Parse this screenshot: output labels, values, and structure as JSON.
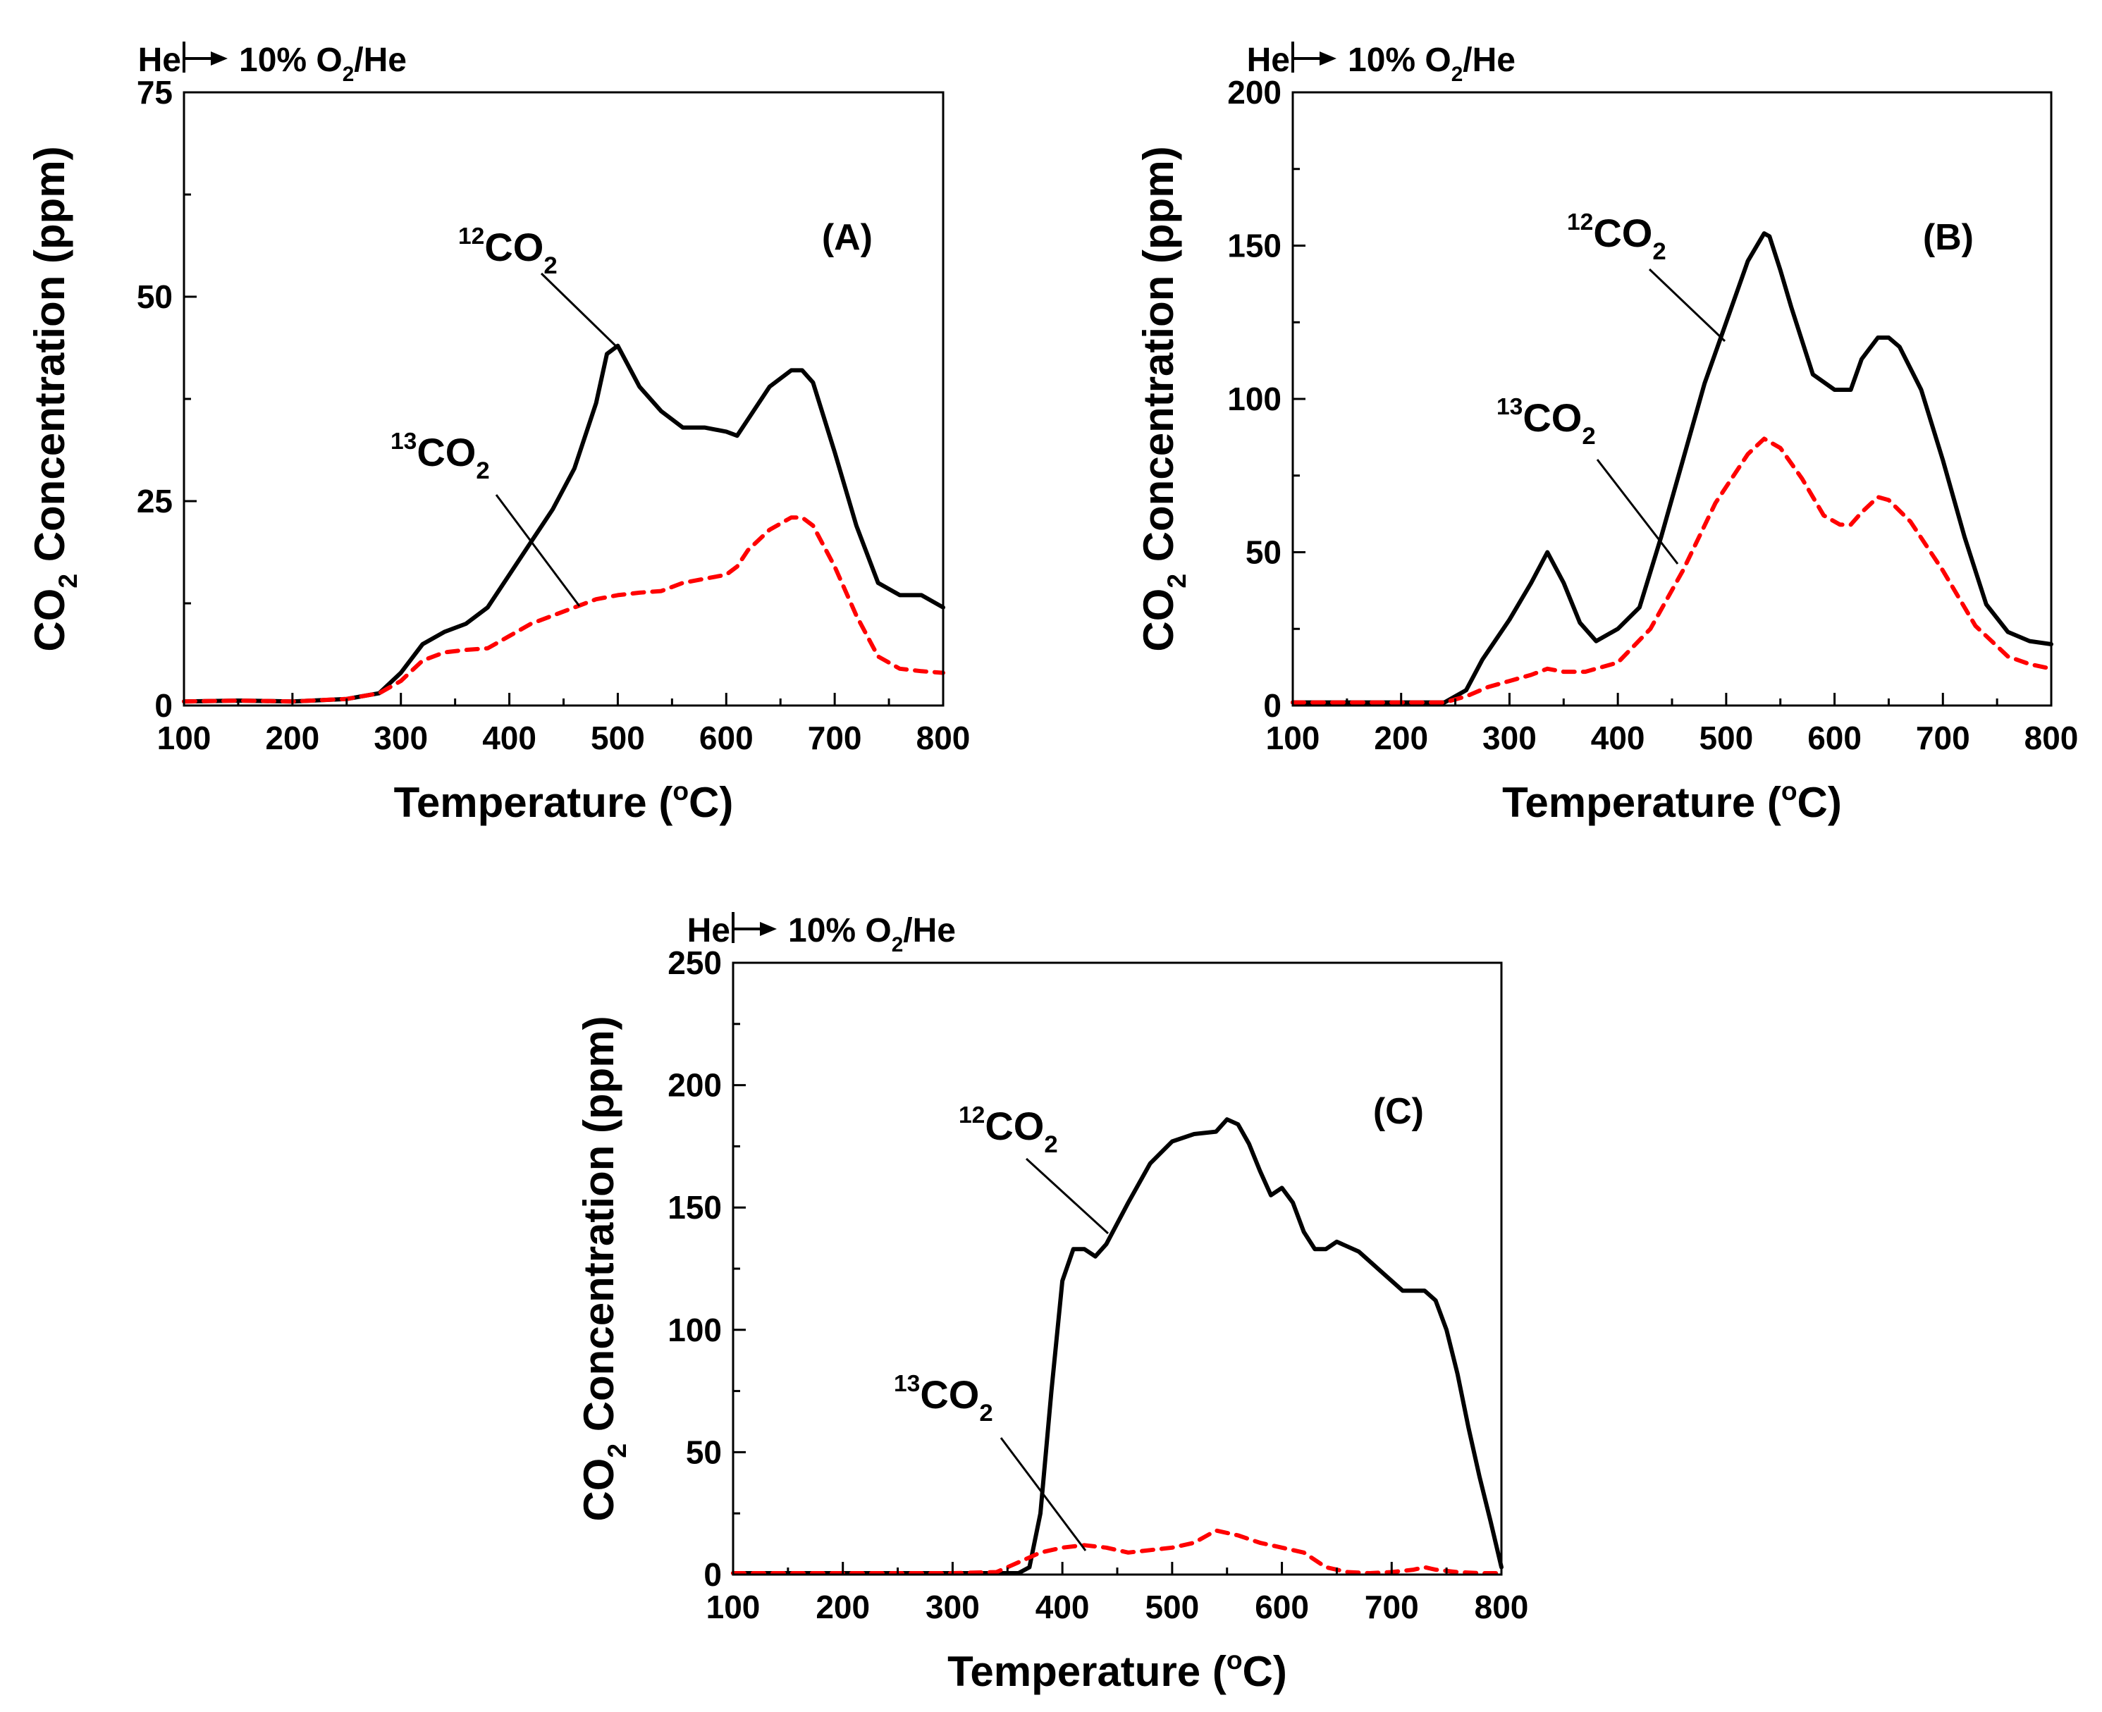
{
  "chart_data": [
    {
      "panel_label": "(A)",
      "type": "line",
      "gas_header": {
        "start": "He",
        "end_main": "10% O",
        "end_sub": "2",
        "end_tail": "/He"
      },
      "xlabel": {
        "main": "Temperature (",
        "sup": "o",
        "tail": "C)"
      },
      "ylabel": {
        "pre": "CO",
        "sub": "2",
        "post": " Concentration (ppm)"
      },
      "xlim": [
        100,
        800
      ],
      "ylim": [
        0,
        75
      ],
      "xticks": [
        100,
        200,
        300,
        400,
        500,
        600,
        700,
        800
      ],
      "yticks": [
        0,
        25,
        50,
        75
      ],
      "grid": false,
      "series": [
        {
          "name": "12CO2",
          "label": {
            "sup": "12",
            "main": "CO",
            "sub": "2"
          },
          "color": "#000000",
          "dash": "solid",
          "x": [
            100,
            150,
            200,
            250,
            280,
            300,
            320,
            340,
            360,
            380,
            400,
            420,
            440,
            460,
            480,
            490,
            500,
            520,
            540,
            560,
            580,
            600,
            610,
            620,
            640,
            660,
            670,
            680,
            700,
            720,
            740,
            760,
            780,
            800
          ],
          "y": [
            0.5,
            0.6,
            0.5,
            0.8,
            1.5,
            4,
            7.5,
            9,
            10,
            12,
            16,
            20,
            24,
            29,
            37,
            43,
            44,
            39,
            36,
            34,
            34,
            33.5,
            33,
            35,
            39,
            41,
            41,
            39.5,
            31,
            22,
            15,
            13.5,
            13.5,
            12
          ]
        },
        {
          "name": "13CO2",
          "label": {
            "sup": "13",
            "main": "CO",
            "sub": "2"
          },
          "color": "#ff0000",
          "dash": "dashed",
          "x": [
            100,
            150,
            200,
            250,
            280,
            300,
            320,
            340,
            360,
            380,
            400,
            420,
            440,
            460,
            480,
            500,
            520,
            540,
            560,
            580,
            600,
            610,
            620,
            640,
            660,
            670,
            680,
            700,
            720,
            740,
            760,
            780,
            800
          ],
          "y": [
            0.5,
            0.6,
            0.5,
            0.8,
            1.5,
            3,
            5.5,
            6.5,
            6.8,
            7,
            8.5,
            10,
            11,
            12,
            13,
            13.5,
            13.8,
            14,
            15,
            15.5,
            16,
            17,
            19,
            21.5,
            23,
            23,
            22,
            17,
            11,
            6,
            4.5,
            4.2,
            4
          ]
        }
      ]
    },
    {
      "panel_label": "(B)",
      "type": "line",
      "gas_header": {
        "start": "He",
        "end_main": "10% O",
        "end_sub": "2",
        "end_tail": "/He"
      },
      "xlabel": {
        "main": "Temperature (",
        "sup": "o",
        "tail": "C)"
      },
      "ylabel": {
        "pre": "CO",
        "sub": "2",
        "post": " Concentration (ppm)"
      },
      "xlim": [
        100,
        800
      ],
      "ylim": [
        0,
        200
      ],
      "xticks": [
        100,
        200,
        300,
        400,
        500,
        600,
        700,
        800
      ],
      "yticks": [
        0,
        50,
        100,
        150,
        200
      ],
      "grid": false,
      "series": [
        {
          "name": "12CO2",
          "label": {
            "sup": "12",
            "main": "CO",
            "sub": "2"
          },
          "color": "#000000",
          "dash": "solid",
          "x": [
            100,
            150,
            200,
            240,
            260,
            275,
            300,
            320,
            335,
            350,
            365,
            380,
            400,
            420,
            440,
            460,
            480,
            500,
            520,
            535,
            540,
            550,
            560,
            580,
            600,
            615,
            625,
            640,
            650,
            660,
            680,
            700,
            720,
            740,
            760,
            780,
            800
          ],
          "y": [
            1,
            1,
            1,
            1,
            5,
            15,
            28,
            40,
            50,
            40,
            27,
            21,
            25,
            32,
            55,
            80,
            105,
            125,
            145,
            154,
            153,
            142,
            130,
            108,
            103,
            103,
            113,
            120,
            120,
            117,
            103,
            80,
            55,
            33,
            24,
            21,
            20
          ]
        },
        {
          "name": "13CO2",
          "label": {
            "sup": "13",
            "main": "CO",
            "sub": "2"
          },
          "color": "#ff0000",
          "dash": "dashed",
          "x": [
            100,
            150,
            200,
            240,
            260,
            280,
            300,
            320,
            335,
            350,
            370,
            400,
            430,
            460,
            490,
            520,
            535,
            550,
            570,
            590,
            605,
            615,
            625,
            640,
            650,
            670,
            700,
            730,
            760,
            780,
            800
          ],
          "y": [
            1,
            1,
            1,
            1,
            3,
            6,
            8,
            10,
            12,
            11,
            11,
            14,
            25,
            44,
            66,
            82,
            87,
            84,
            74,
            62,
            59,
            59,
            63,
            68,
            67,
            60,
            44,
            26,
            16,
            13.5,
            12
          ]
        }
      ]
    },
    {
      "panel_label": "(C)",
      "type": "line",
      "gas_header": {
        "start": "He",
        "end_main": "10% O",
        "end_sub": "2",
        "end_tail": "/He"
      },
      "xlabel": {
        "main": "Temperature (",
        "sup": "o",
        "tail": "C)"
      },
      "ylabel": {
        "pre": "CO",
        "sub": "2",
        "post": " Concentration (ppm)"
      },
      "xlim": [
        100,
        800
      ],
      "ylim": [
        0,
        250
      ],
      "xticks": [
        100,
        200,
        300,
        400,
        500,
        600,
        700,
        800
      ],
      "yticks": [
        0,
        50,
        100,
        150,
        200,
        250
      ],
      "grid": false,
      "series": [
        {
          "name": "12CO2",
          "label": {
            "sup": "12",
            "main": "CO",
            "sub": "2"
          },
          "color": "#000000",
          "dash": "solid",
          "x": [
            100,
            300,
            360,
            370,
            380,
            390,
            400,
            410,
            420,
            430,
            440,
            460,
            480,
            500,
            520,
            540,
            550,
            560,
            570,
            580,
            590,
            600,
            610,
            620,
            630,
            640,
            650,
            670,
            690,
            710,
            730,
            740,
            750,
            760,
            770,
            780,
            790,
            800
          ],
          "y": [
            0,
            0,
            0,
            3,
            25,
            75,
            120,
            133,
            133,
            130,
            135,
            152,
            168,
            177,
            180,
            181,
            186,
            184,
            176,
            165,
            155,
            158,
            152,
            140,
            133,
            133,
            136,
            132,
            124,
            116,
            116,
            112,
            100,
            82,
            60,
            40,
            22,
            3
          ]
        },
        {
          "name": "13CO2",
          "label": {
            "sup": "13",
            "main": "CO",
            "sub": "2"
          },
          "color": "#ff0000",
          "dash": "dashed",
          "x": [
            100,
            300,
            340,
            360,
            380,
            400,
            420,
            440,
            460,
            480,
            500,
            520,
            540,
            560,
            580,
            600,
            620,
            640,
            660,
            680,
            700,
            720,
            730,
            740,
            760,
            780,
            800
          ],
          "y": [
            0,
            0,
            1,
            5,
            9,
            11,
            12,
            11,
            9,
            10,
            11,
            13,
            18,
            16,
            13,
            11,
            9,
            3,
            1,
            0.5,
            1,
            2,
            3,
            2,
            1,
            0.5,
            0
          ]
        }
      ]
    }
  ]
}
